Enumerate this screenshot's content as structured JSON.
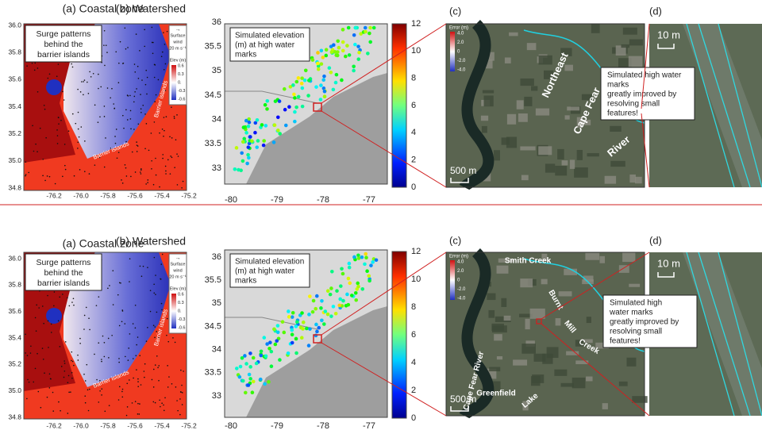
{
  "rows": [
    {
      "a": {
        "title": "(a) Coastal zone",
        "callout": [
          "Surge patterns",
          "behind the",
          "barrier islands"
        ],
        "wind": [
          "Surface",
          "wind",
          "20 m s⁻¹"
        ],
        "legend_title": "Elev (m)",
        "legend_ticks": [
          "0.6",
          "0.3",
          "0.",
          "-0.3",
          "-0.6"
        ],
        "barrier_labels": [
          "Barrier islands",
          "Barrier islands"
        ],
        "yticks": [
          "36.0",
          "35.8",
          "35.6",
          "35.4",
          "35.2",
          "35.0",
          "34.8"
        ],
        "xticks": [
          "-76.2",
          "-76.0",
          "-75.8",
          "-75.6",
          "-75.4",
          "-75.2"
        ]
      },
      "b": {
        "title": "(b) Watershed",
        "callout": [
          "Simulated elevation",
          "(m) at high water",
          "marks"
        ],
        "yticks": [
          "36",
          "35.5",
          "35",
          "34.5",
          "34",
          "33.5",
          "33"
        ],
        "xticks": [
          "-80",
          "-79",
          "-78",
          "-77"
        ],
        "colorbar_ticks": [
          "12",
          "10",
          "8",
          "6",
          "4",
          "2",
          "0"
        ]
      },
      "c": {
        "label": "(c)",
        "error_title": "Error (m)",
        "error_ticks": [
          "4.0",
          "2.0",
          "0",
          "-2.0",
          "-4.0"
        ],
        "scale": "500 m",
        "places": [
          "Northeast",
          "Cape Fear",
          "River"
        ],
        "callout": [
          "Simulated high water",
          "marks",
          "greatly improved by",
          "resolving small",
          "features!"
        ]
      },
      "d": {
        "label": "(d)",
        "scale": "10 m"
      }
    },
    {
      "a": {
        "title": "(a) Coastal zone",
        "callout": [
          "Surge patterns",
          "behind the",
          "barrier islands"
        ],
        "wind": [
          "Surface",
          "wind",
          "20 m s⁻¹"
        ],
        "legend_title": "Elev (m)",
        "legend_ticks": [
          "0.6",
          "0.3",
          "0.",
          "-0.3",
          "-0.6"
        ],
        "barrier_labels": [
          "Barrier islands",
          "Barrier islands"
        ],
        "yticks": [
          "36.0",
          "35.8",
          "35.6",
          "35.4",
          "35.2",
          "35.0",
          "34.8"
        ],
        "xticks": [
          "-76.2",
          "-76.0",
          "-75.8",
          "-75.6",
          "-75.4",
          "-75.2"
        ]
      },
      "b": {
        "title": "(b) Watershed",
        "callout": [
          "Simulated elevation",
          "(m) at high water",
          "marks"
        ],
        "yticks": [
          "36",
          "35.5",
          "35",
          "34.5",
          "34",
          "33.5",
          "33"
        ],
        "xticks": [
          "-80",
          "-79",
          "-78",
          "-77"
        ],
        "colorbar_ticks": [
          "12",
          "10",
          "8",
          "6",
          "4",
          "2",
          "0"
        ]
      },
      "c": {
        "label": "(c)",
        "error_title": "Error (m)",
        "error_ticks": [
          "4.0",
          "2.0",
          "0",
          "-2.0",
          "-4.0"
        ],
        "scale": "500 m",
        "places": [
          "Smith Creek",
          "Burnt",
          "Mill",
          "Creek",
          "Cape Fear River",
          "Greenfield",
          "Lake"
        ],
        "callout": [
          "Simulated high",
          "water marks",
          "greatly improved by",
          "resolving small",
          "features!"
        ]
      },
      "d": {
        "label": "(d)",
        "scale": "10 m"
      }
    }
  ]
}
